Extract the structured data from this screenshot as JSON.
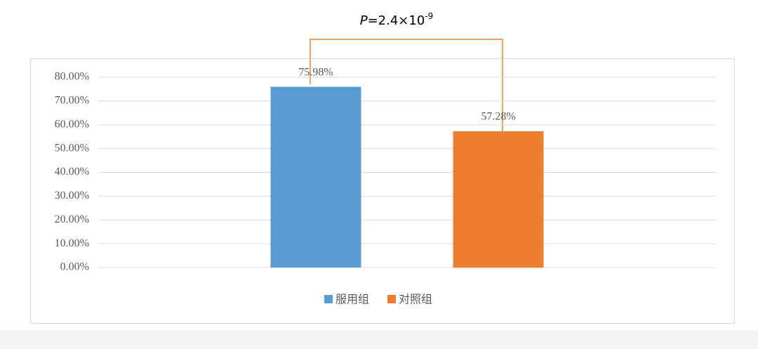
{
  "chart_data": {
    "type": "bar",
    "annotation": {
      "italic": "P",
      "text": "=2.4×10",
      "exponent": "-9"
    },
    "categories": [
      null
    ],
    "series": [
      {
        "name": "服用组",
        "color": "#5b9bd5",
        "values": [
          75.98
        ],
        "value_labels": [
          "75.98%"
        ]
      },
      {
        "name": "对照组",
        "color": "#ed7d31",
        "values": [
          57.28
        ],
        "value_labels": [
          "57.28%"
        ]
      }
    ],
    "ylim": [
      0,
      80
    ],
    "yticks": [
      {
        "value": 0,
        "label": "0.00%"
      },
      {
        "value": 10,
        "label": "10.00%"
      },
      {
        "value": 20,
        "label": "20.00%"
      },
      {
        "value": 30,
        "label": "30.00%"
      },
      {
        "value": 40,
        "label": "40.00%"
      },
      {
        "value": 50,
        "label": "50.00%"
      },
      {
        "value": 60,
        "label": "60.00%"
      },
      {
        "value": 70,
        "label": "70.00%"
      },
      {
        "value": 80,
        "label": "80.00%"
      }
    ],
    "grid": true,
    "legend": "bottom"
  }
}
